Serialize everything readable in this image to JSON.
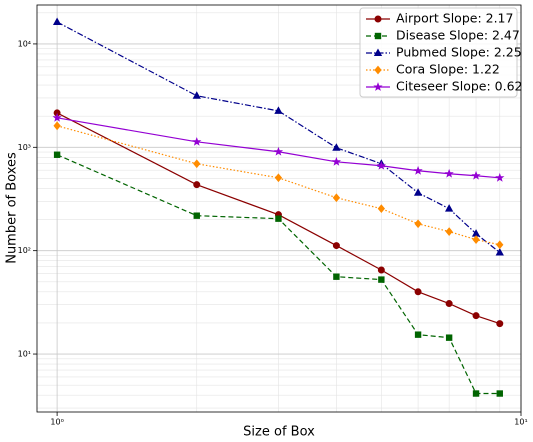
{
  "chart_data": {
    "type": "line",
    "xlabel": "Size of Box",
    "ylabel": "Number of Boxes",
    "x": [
      1,
      2,
      3,
      4,
      5,
      6,
      7,
      8,
      9
    ],
    "series": [
      {
        "name": "Airport Slope: 2.17",
        "color": "#8b0000",
        "marker": "circle",
        "dash": "solid",
        "values": [
          2150,
          435,
          223,
          112,
          65,
          40,
          30.8,
          23.5,
          19.7
        ]
      },
      {
        "name": "Disease Slope: 2.47",
        "color": "#006400",
        "marker": "square",
        "dash": "dashed",
        "values": [
          847,
          218,
          204,
          56,
          52.5,
          15.4,
          14.4,
          4.15,
          4.15
        ]
      },
      {
        "name": "Pubmed Slope: 2.25",
        "color": "#00008b",
        "marker": "triangle",
        "dash": "dashdot",
        "values": [
          16300,
          3150,
          2250,
          990,
          693,
          363,
          255,
          146,
          96
        ]
      },
      {
        "name": "Cora Slope: 1.22",
        "color": "#ff8c00",
        "marker": "diamond",
        "dash": "dotted",
        "values": [
          1614,
          693,
          507,
          325,
          255,
          182,
          153,
          128,
          114
        ]
      },
      {
        "name": "Citeseer Slope: 0.62",
        "color": "#9400d3",
        "marker": "star",
        "dash": "solid",
        "values": [
          1930,
          1130,
          906,
          724,
          663,
          593,
          555,
          531,
          507
        ]
      }
    ],
    "xscale": "log",
    "yscale": "log",
    "xlim": [
      0.905,
      10
    ],
    "ylim": [
      2.75,
      23800
    ],
    "xticks": [
      {
        "value": 1,
        "label": "10⁰"
      },
      {
        "value": 10,
        "label": "10¹"
      }
    ],
    "yticks": [
      {
        "value": 10,
        "label": "10¹"
      },
      {
        "value": 100,
        "label": "10²"
      },
      {
        "value": 1000,
        "label": "10³"
      },
      {
        "value": 10000,
        "label": "10⁴"
      }
    ],
    "xminorticks": [
      2,
      3,
      4,
      5,
      6,
      7,
      8,
      9
    ],
    "yminorticks": [
      3,
      4,
      5,
      6,
      7,
      8,
      9,
      20,
      30,
      40,
      50,
      60,
      70,
      80,
      90,
      200,
      300,
      400,
      500,
      600,
      700,
      800,
      900,
      2000,
      3000,
      4000,
      5000,
      6000,
      7000,
      8000,
      9000,
      20000
    ],
    "grid": true,
    "legend": "upper right"
  }
}
